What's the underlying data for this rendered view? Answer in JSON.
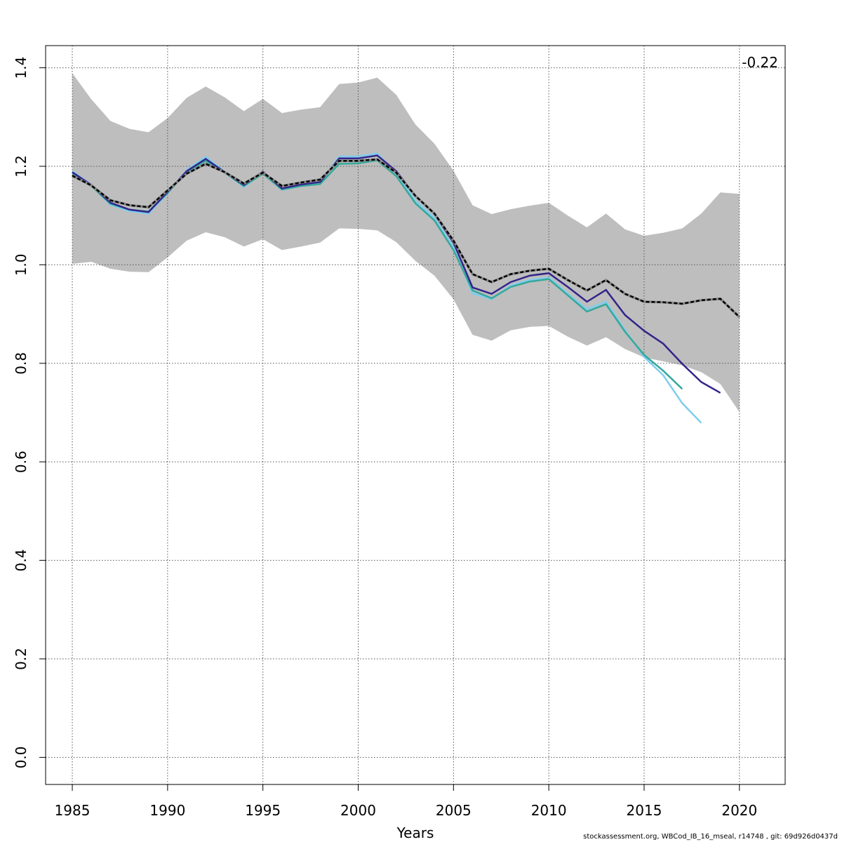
{
  "chart_data": {
    "type": "line",
    "title": "",
    "xlabel": "Years",
    "ylabel": "",
    "xlim": [
      1983.6,
      2022.4
    ],
    "ylim": [
      -0.055,
      1.445
    ],
    "x_ticks": [
      1985,
      1990,
      1995,
      2000,
      2005,
      2010,
      2015,
      2020
    ],
    "y_ticks": [
      0.0,
      0.2,
      0.4,
      0.6,
      0.8,
      1.0,
      1.2,
      1.4
    ],
    "y_tick_labels": [
      "0.0",
      "0.2",
      "0.4",
      "0.6",
      "0.8",
      "1.0",
      "1.2",
      "1.4"
    ],
    "grid": true,
    "annotation": "-0.22",
    "band": {
      "color": "#bebebe",
      "x_start": 1985,
      "upper": [
        1.389,
        1.336,
        1.292,
        1.276,
        1.269,
        1.298,
        1.339,
        1.362,
        1.34,
        1.312,
        1.337,
        1.308,
        1.315,
        1.32,
        1.367,
        1.37,
        1.38,
        1.345,
        1.285,
        1.246,
        1.191,
        1.121,
        1.103,
        1.113,
        1.12,
        1.126,
        1.1,
        1.076,
        1.104,
        1.072,
        1.059,
        1.065,
        1.074,
        1.104,
        1.147,
        1.144
      ],
      "lower": [
        1.002,
        1.006,
        0.992,
        0.986,
        0.985,
        1.015,
        1.049,
        1.066,
        1.056,
        1.037,
        1.052,
        1.03,
        1.037,
        1.045,
        1.074,
        1.073,
        1.07,
        1.046,
        1.008,
        0.978,
        0.93,
        0.858,
        0.846,
        0.867,
        0.874,
        0.876,
        0.854,
        0.836,
        0.853,
        0.829,
        0.812,
        0.804,
        0.796,
        0.782,
        0.758,
        0.701
      ]
    },
    "series": [
      {
        "color": "#7fcdee",
        "dashed": false,
        "x_start": 1985,
        "values": [
          1.19,
          1.162,
          1.122,
          1.109,
          1.104,
          1.145,
          1.192,
          1.219,
          1.189,
          1.158,
          1.188,
          1.152,
          1.16,
          1.166,
          1.22,
          1.22,
          1.226,
          1.185,
          1.13,
          1.095,
          1.035,
          0.942,
          0.93,
          0.958,
          0.969,
          0.974,
          0.941,
          0.91,
          0.925,
          0.867,
          0.813,
          0.776,
          0.719,
          0.679
        ]
      },
      {
        "color": "#35a89a",
        "dashed": false,
        "x_start": 1985,
        "values": [
          1.186,
          1.16,
          1.124,
          1.112,
          1.108,
          1.146,
          1.189,
          1.211,
          1.187,
          1.16,
          1.185,
          1.153,
          1.16,
          1.164,
          1.205,
          1.206,
          1.212,
          1.18,
          1.125,
          1.09,
          1.03,
          0.948,
          0.932,
          0.955,
          0.966,
          0.971,
          0.938,
          0.905,
          0.92,
          0.864,
          0.817,
          0.785,
          0.748
        ]
      },
      {
        "color": "#33258a",
        "dashed": false,
        "x_start": 1985,
        "values": [
          1.188,
          1.162,
          1.126,
          1.112,
          1.107,
          1.148,
          1.19,
          1.215,
          1.188,
          1.162,
          1.189,
          1.155,
          1.163,
          1.168,
          1.216,
          1.216,
          1.222,
          1.19,
          1.14,
          1.103,
          1.045,
          0.954,
          0.941,
          0.965,
          0.978,
          0.983,
          0.955,
          0.925,
          0.949,
          0.898,
          0.866,
          0.84,
          0.799,
          0.762,
          0.74
        ]
      },
      {
        "color": "#000000",
        "dashed": true,
        "x_start": 1985,
        "values": [
          1.181,
          1.161,
          1.131,
          1.121,
          1.117,
          1.151,
          1.185,
          1.205,
          1.188,
          1.165,
          1.187,
          1.16,
          1.167,
          1.173,
          1.211,
          1.211,
          1.214,
          1.187,
          1.14,
          1.104,
          1.049,
          0.981,
          0.965,
          0.981,
          0.988,
          0.992,
          0.969,
          0.948,
          0.969,
          0.941,
          0.925,
          0.924,
          0.921,
          0.928,
          0.931,
          0.894
        ]
      }
    ]
  },
  "footer": "stockassessment.org, WBCod_IB_16_mseal, r14748 , git: 69d926d0437d"
}
